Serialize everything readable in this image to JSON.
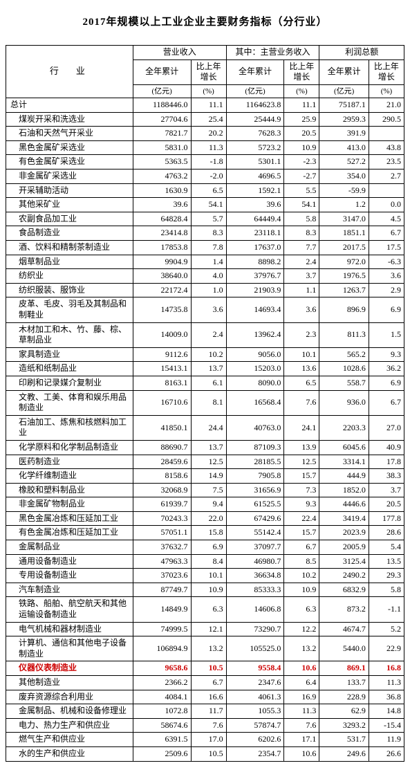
{
  "title": "2017年规模以上工业企业主要财务指标（分行业）",
  "header": {
    "industry": "行　业",
    "group1": "营业收入",
    "group2": "其中：主营业务收入",
    "group3": "利润总额",
    "full_year": "全年累计",
    "yoy": "比上年增长",
    "unit_yi": "(亿元)",
    "unit_pct": "(%)"
  },
  "highlight_color": "#cc0000",
  "rows": [
    {
      "name": "总计",
      "indent": false,
      "v1": "1188446.0",
      "g1": "11.1",
      "v2": "1164623.8",
      "g2": "11.1",
      "v3": "75187.1",
      "g3": "21.0"
    },
    {
      "name": "煤炭开采和洗选业",
      "indent": true,
      "v1": "27704.6",
      "g1": "25.4",
      "v2": "25444.9",
      "g2": "25.9",
      "v3": "2959.3",
      "g3": "290.5"
    },
    {
      "name": "石油和天然气开采业",
      "indent": true,
      "v1": "7821.7",
      "g1": "20.2",
      "v2": "7628.3",
      "g2": "20.5",
      "v3": "391.9",
      "g3": ""
    },
    {
      "name": "黑色金属矿采选业",
      "indent": true,
      "v1": "5831.0",
      "g1": "11.3",
      "v2": "5723.2",
      "g2": "10.9",
      "v3": "413.0",
      "g3": "43.8"
    },
    {
      "name": "有色金属矿采选业",
      "indent": true,
      "v1": "5363.5",
      "g1": "-1.8",
      "v2": "5301.1",
      "g2": "-2.3",
      "v3": "527.2",
      "g3": "23.5"
    },
    {
      "name": "非金属矿采选业",
      "indent": true,
      "v1": "4763.2",
      "g1": "-2.0",
      "v2": "4696.5",
      "g2": "-2.7",
      "v3": "354.0",
      "g3": "2.7"
    },
    {
      "name": "开采辅助活动",
      "indent": true,
      "v1": "1630.9",
      "g1": "6.5",
      "v2": "1592.1",
      "g2": "5.5",
      "v3": "-59.9",
      "g3": ""
    },
    {
      "name": "其他采矿业",
      "indent": true,
      "v1": "39.6",
      "g1": "54.1",
      "v2": "39.6",
      "g2": "54.1",
      "v3": "1.2",
      "g3": "0.0"
    },
    {
      "name": "农副食品加工业",
      "indent": true,
      "v1": "64828.4",
      "g1": "5.7",
      "v2": "64449.4",
      "g2": "5.8",
      "v3": "3147.0",
      "g3": "4.5"
    },
    {
      "name": "食品制造业",
      "indent": true,
      "v1": "23414.8",
      "g1": "8.3",
      "v2": "23118.1",
      "g2": "8.3",
      "v3": "1851.1",
      "g3": "6.7"
    },
    {
      "name": "酒、饮料和精制茶制造业",
      "indent": true,
      "v1": "17853.8",
      "g1": "7.8",
      "v2": "17637.0",
      "g2": "7.7",
      "v3": "2017.5",
      "g3": "17.5"
    },
    {
      "name": "烟草制品业",
      "indent": true,
      "v1": "9904.9",
      "g1": "1.4",
      "v2": "8898.2",
      "g2": "2.4",
      "v3": "972.0",
      "g3": "-6.3"
    },
    {
      "name": "纺织业",
      "indent": true,
      "v1": "38640.0",
      "g1": "4.0",
      "v2": "37976.7",
      "g2": "3.7",
      "v3": "1976.5",
      "g3": "3.6"
    },
    {
      "name": "纺织服装、服饰业",
      "indent": true,
      "v1": "22172.4",
      "g1": "1.0",
      "v2": "21903.9",
      "g2": "1.1",
      "v3": "1263.7",
      "g3": "2.9"
    },
    {
      "name": "皮革、毛皮、羽毛及其制品和制鞋业",
      "indent": true,
      "v1": "14735.8",
      "g1": "3.6",
      "v2": "14693.4",
      "g2": "3.6",
      "v3": "896.9",
      "g3": "6.9"
    },
    {
      "name": "木材加工和木、竹、藤、棕、草制品业",
      "indent": true,
      "v1": "14009.0",
      "g1": "2.4",
      "v2": "13962.4",
      "g2": "2.3",
      "v3": "811.3",
      "g3": "1.5"
    },
    {
      "name": "家具制造业",
      "indent": true,
      "v1": "9112.6",
      "g1": "10.2",
      "v2": "9056.0",
      "g2": "10.1",
      "v3": "565.2",
      "g3": "9.3"
    },
    {
      "name": "造纸和纸制品业",
      "indent": true,
      "v1": "15413.1",
      "g1": "13.7",
      "v2": "15203.0",
      "g2": "13.6",
      "v3": "1028.6",
      "g3": "36.2"
    },
    {
      "name": "印刷和记录媒介复制业",
      "indent": true,
      "v1": "8163.1",
      "g1": "6.1",
      "v2": "8090.0",
      "g2": "6.5",
      "v3": "558.7",
      "g3": "6.9"
    },
    {
      "name": "文教、工美、体育和娱乐用品制造业",
      "indent": true,
      "v1": "16710.6",
      "g1": "8.1",
      "v2": "16568.4",
      "g2": "7.6",
      "v3": "936.0",
      "g3": "6.7"
    },
    {
      "name": "石油加工、炼焦和核燃料加工业",
      "indent": true,
      "v1": "41850.1",
      "g1": "24.4",
      "v2": "40763.0",
      "g2": "24.1",
      "v3": "2203.3",
      "g3": "27.0"
    },
    {
      "name": "化学原料和化学制品制造业",
      "indent": true,
      "v1": "88690.7",
      "g1": "13.7",
      "v2": "87109.3",
      "g2": "13.9",
      "v3": "6045.6",
      "g3": "40.9"
    },
    {
      "name": "医药制造业",
      "indent": true,
      "v1": "28459.6",
      "g1": "12.5",
      "v2": "28185.5",
      "g2": "12.5",
      "v3": "3314.1",
      "g3": "17.8"
    },
    {
      "name": "化学纤维制造业",
      "indent": true,
      "v1": "8158.6",
      "g1": "14.9",
      "v2": "7905.8",
      "g2": "15.7",
      "v3": "444.9",
      "g3": "38.3"
    },
    {
      "name": "橡胶和塑料制品业",
      "indent": true,
      "v1": "32068.9",
      "g1": "7.5",
      "v2": "31656.9",
      "g2": "7.3",
      "v3": "1852.0",
      "g3": "3.7"
    },
    {
      "name": "非金属矿物制品业",
      "indent": true,
      "v1": "61939.7",
      "g1": "9.4",
      "v2": "61525.5",
      "g2": "9.3",
      "v3": "4446.6",
      "g3": "20.5"
    },
    {
      "name": "黑色金属冶炼和压延加工业",
      "indent": true,
      "v1": "70243.3",
      "g1": "22.0",
      "v2": "67429.6",
      "g2": "22.4",
      "v3": "3419.4",
      "g3": "177.8"
    },
    {
      "name": "有色金属冶炼和压延加工业",
      "indent": true,
      "v1": "57051.1",
      "g1": "15.8",
      "v2": "55142.4",
      "g2": "15.7",
      "v3": "2023.9",
      "g3": "28.6"
    },
    {
      "name": "金属制品业",
      "indent": true,
      "v1": "37632.7",
      "g1": "6.9",
      "v2": "37097.7",
      "g2": "6.7",
      "v3": "2005.9",
      "g3": "5.4"
    },
    {
      "name": "通用设备制造业",
      "indent": true,
      "v1": "47963.3",
      "g1": "8.4",
      "v2": "46980.7",
      "g2": "8.5",
      "v3": "3125.4",
      "g3": "13.5"
    },
    {
      "name": "专用设备制造业",
      "indent": true,
      "v1": "37023.6",
      "g1": "10.1",
      "v2": "36634.8",
      "g2": "10.2",
      "v3": "2490.2",
      "g3": "29.3"
    },
    {
      "name": "汽车制造业",
      "indent": true,
      "v1": "87749.7",
      "g1": "10.9",
      "v2": "85333.3",
      "g2": "10.9",
      "v3": "6832.9",
      "g3": "5.8"
    },
    {
      "name": "铁路、船舶、航空航天和其他运输设备制造业",
      "indent": true,
      "v1": "14849.9",
      "g1": "6.3",
      "v2": "14606.8",
      "g2": "6.3",
      "v3": "873.2",
      "g3": "-1.1"
    },
    {
      "name": "电气机械和器材制造业",
      "indent": true,
      "v1": "74999.5",
      "g1": "12.1",
      "v2": "73290.7",
      "g2": "12.2",
      "v3": "4674.7",
      "g3": "5.2"
    },
    {
      "name": "计算机、通信和其他电子设备制造业",
      "indent": true,
      "v1": "106894.9",
      "g1": "13.2",
      "v2": "105525.0",
      "g2": "13.2",
      "v3": "5440.0",
      "g3": "22.9"
    },
    {
      "name": "仪器仪表制造业",
      "indent": true,
      "v1": "9658.6",
      "g1": "10.5",
      "v2": "9558.4",
      "g2": "10.6",
      "v3": "869.1",
      "g3": "16.8",
      "highlight": true
    },
    {
      "name": "其他制造业",
      "indent": true,
      "v1": "2366.2",
      "g1": "6.7",
      "v2": "2347.6",
      "g2": "6.4",
      "v3": "133.7",
      "g3": "11.3"
    },
    {
      "name": "废弃资源综合利用业",
      "indent": true,
      "v1": "4084.1",
      "g1": "16.6",
      "v2": "4061.3",
      "g2": "16.9",
      "v3": "228.9",
      "g3": "36.8"
    },
    {
      "name": "金属制品、机械和设备修理业",
      "indent": true,
      "v1": "1072.8",
      "g1": "11.7",
      "v2": "1055.3",
      "g2": "11.3",
      "v3": "62.9",
      "g3": "14.8"
    },
    {
      "name": "电力、热力生产和供应业",
      "indent": true,
      "v1": "58674.6",
      "g1": "7.6",
      "v2": "57874.7",
      "g2": "7.6",
      "v3": "3293.2",
      "g3": "-15.4"
    },
    {
      "name": "燃气生产和供应业",
      "indent": true,
      "v1": "6391.5",
      "g1": "17.0",
      "v2": "6202.6",
      "g2": "17.1",
      "v3": "531.7",
      "g3": "11.9"
    },
    {
      "name": "水的生产和供应业",
      "indent": true,
      "v1": "2509.6",
      "g1": "10.5",
      "v2": "2354.7",
      "g2": "10.6",
      "v3": "249.6",
      "g3": "26.6"
    }
  ]
}
